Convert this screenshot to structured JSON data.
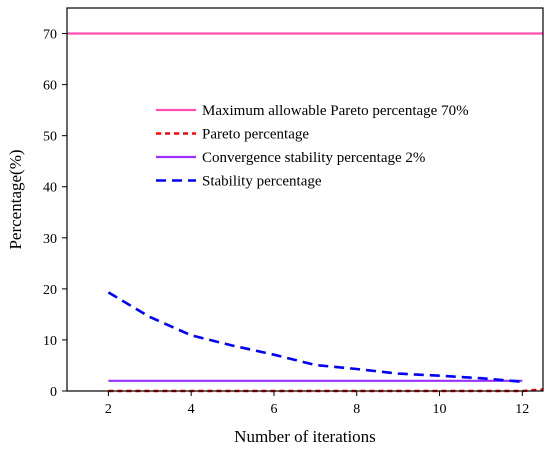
{
  "chart_data": {
    "type": "line",
    "title": "",
    "xlabel": "Number of iterations",
    "ylabel": "Percentage(%)",
    "xlim": [
      1,
      12.5
    ],
    "ylim": [
      0,
      75
    ],
    "xticks": [
      2,
      4,
      6,
      8,
      10,
      12
    ],
    "yticks": [
      0,
      10,
      20,
      30,
      40,
      50,
      60,
      70
    ],
    "grid": false,
    "legend_position": "upper-center",
    "series": [
      {
        "name": "Maximum allowable Pareto percentage 70%",
        "color": "#ff4fb0",
        "style": "solid",
        "x": [
          1,
          12.5
        ],
        "y": [
          70,
          70
        ]
      },
      {
        "name": "Pareto percentage",
        "color": "#ff0000",
        "style": "dotted",
        "x": [
          2,
          3,
          4,
          5,
          6,
          7,
          8,
          9,
          10,
          11,
          12,
          12.5
        ],
        "y": [
          0,
          0,
          0,
          0,
          0,
          0,
          0,
          0,
          0,
          0,
          0,
          0.3
        ]
      },
      {
        "name": "Convergence stability percentage 2%",
        "color": "#9b30ff",
        "style": "solid",
        "x": [
          2,
          12
        ],
        "y": [
          2,
          2
        ]
      },
      {
        "name": "Stability percentage",
        "color": "#0000ff",
        "style": "dashed",
        "x": [
          2,
          3,
          4,
          5,
          6,
          7,
          8,
          9,
          10,
          11,
          12
        ],
        "y": [
          19.3,
          14.5,
          10.9,
          8.9,
          7.1,
          5.1,
          4.3,
          3.4,
          3.0,
          2.5,
          1.8
        ]
      }
    ]
  }
}
